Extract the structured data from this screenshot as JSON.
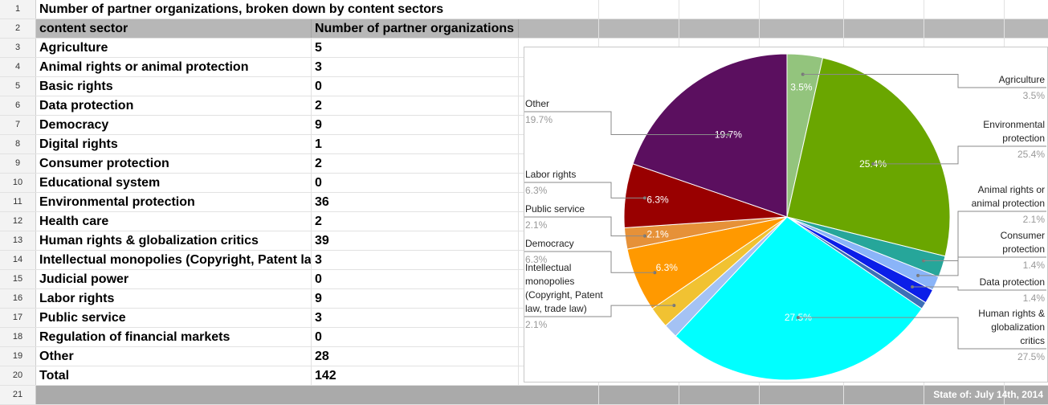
{
  "sheet": {
    "title": "Number of partner organizations, broken down by content sectors",
    "header": {
      "col_a": "content sector",
      "col_b": "Number of partner organizations"
    },
    "rows": [
      {
        "sector": "Agriculture",
        "count": "5"
      },
      {
        "sector": "Animal rights or animal protection",
        "count": "3"
      },
      {
        "sector": "Basic rights",
        "count": "0"
      },
      {
        "sector": "Data protection",
        "count": "2"
      },
      {
        "sector": "Democracy",
        "count": "9"
      },
      {
        "sector": "Digital rights",
        "count": "1"
      },
      {
        "sector": "Consumer protection",
        "count": "2"
      },
      {
        "sector": "Educational system",
        "count": "0"
      },
      {
        "sector": "Environmental protection",
        "count": "36"
      },
      {
        "sector": "Health care",
        "count": "2"
      },
      {
        "sector": "Human rights & globalization critics",
        "count": "39"
      },
      {
        "sector": "Intellectual monopolies (Copyright, Patent la",
        "count": "3"
      },
      {
        "sector": "Judicial power",
        "count": "0"
      },
      {
        "sector": "Labor rights",
        "count": "9"
      },
      {
        "sector": "Public service",
        "count": "3"
      },
      {
        "sector": "Regulation of financial markets",
        "count": "0"
      },
      {
        "sector": "Other",
        "count": "28"
      }
    ],
    "total": {
      "label": "Total",
      "count": "142"
    },
    "footer_note": "State of: July 14th, 2014",
    "row_numbers": [
      "1",
      "2",
      "3",
      "4",
      "5",
      "6",
      "7",
      "8",
      "9",
      "10",
      "11",
      "12",
      "13",
      "14",
      "15",
      "16",
      "17",
      "18",
      "19",
      "20",
      "21"
    ]
  },
  "chart_data": {
    "type": "pie",
    "title": "",
    "slices": [
      {
        "name": "Agriculture",
        "value": 5,
        "pct": "3.5%",
        "color": "#93c47d",
        "side": "right",
        "inner": true
      },
      {
        "name": "Environmental protection",
        "value": 36,
        "pct": "25.4%",
        "color": "#6aa600",
        "side": "right",
        "inner": true
      },
      {
        "name": "Animal rights or animal protection",
        "value": 3,
        "pct": "2.1%",
        "color": "#26a69a",
        "side": "right",
        "inner": false
      },
      {
        "name": "Consumer protection",
        "value": 2,
        "pct": "1.4%",
        "color": "#8ab4f8",
        "side": "right",
        "inner": false
      },
      {
        "name": "Data protection",
        "value": 2,
        "pct": "1.4%",
        "color": "#0b1ee8",
        "side": "right",
        "inner": false
      },
      {
        "name": "Digital rights",
        "value": 1,
        "pct": "",
        "color": "#3d6fb6",
        "side": "none",
        "inner": false
      },
      {
        "name": "Human rights & globalization critics",
        "value": 39,
        "pct": "27.5%",
        "color": "#00ffff",
        "side": "right",
        "inner": true
      },
      {
        "name": "Health care",
        "value": 2,
        "pct": "",
        "color": "#a4c2f4",
        "side": "none",
        "inner": false
      },
      {
        "name": "Intellectual monopolies (Copyright, Patent law, trade law)",
        "value": 3,
        "pct": "2.1%",
        "color": "#f1c232",
        "side": "left",
        "inner": false
      },
      {
        "name": "Democracy",
        "value": 9,
        "pct": "6.3%",
        "color": "#ff9900",
        "side": "left",
        "inner": true
      },
      {
        "name": "Public service",
        "value": 3,
        "pct": "2.1%",
        "color": "#e69138",
        "side": "left",
        "inner": true
      },
      {
        "name": "Labor rights",
        "value": 9,
        "pct": "6.3%",
        "color": "#990000",
        "side": "left",
        "inner": true
      },
      {
        "name": "Other",
        "value": 28,
        "pct": "19.7%",
        "color": "#5b0f5f",
        "side": "left",
        "inner": true
      }
    ],
    "outer_labels": [
      {
        "lines": [
          "Agriculture"
        ],
        "pct": "3.5%"
      },
      {
        "lines": [
          "Environmental",
          "protection"
        ],
        "pct": "25.4%"
      },
      {
        "lines": [
          "Animal rights or",
          "animal protection"
        ],
        "pct": "2.1%"
      },
      {
        "lines": [
          "Consumer",
          "protection"
        ],
        "pct": "1.4%"
      },
      {
        "lines": [
          "Data protection"
        ],
        "pct": "1.4%"
      },
      {
        "lines": [
          "Human rights &",
          "globalization",
          "critics"
        ],
        "pct": "27.5%"
      },
      {
        "lines": [
          "Other"
        ],
        "pct": "19.7%"
      },
      {
        "lines": [
          "Labor rights"
        ],
        "pct": "6.3%"
      },
      {
        "lines": [
          "Public service"
        ],
        "pct": "2.1%"
      },
      {
        "lines": [
          "Democracy"
        ],
        "pct": "6.3%"
      },
      {
        "lines": [
          "Intellectual",
          "monopolies",
          "(Copyright, Patent",
          "law, trade law)"
        ],
        "pct": "2.1%"
      }
    ],
    "inner_labels": [
      "3.5%",
      "25.4%",
      "27.5%",
      "6.3%",
      "2.1%",
      "6.3%",
      "19.7%"
    ],
    "legend": "labeled"
  }
}
